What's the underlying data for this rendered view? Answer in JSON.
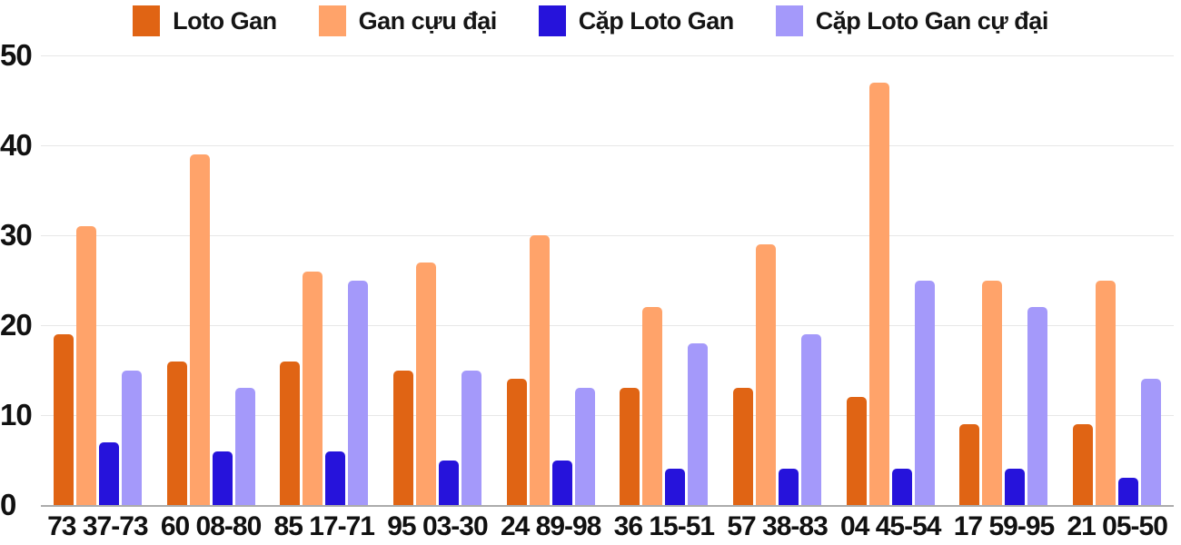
{
  "chart_data": {
    "type": "bar",
    "title": "",
    "xlabel": "",
    "ylabel": "",
    "ylim": [
      0,
      50
    ],
    "yticks": [
      0,
      10,
      20,
      30,
      40,
      50
    ],
    "grid": true,
    "legend_position": "top",
    "categories": [
      "73 37-73",
      "60 08-80",
      "85 17-71",
      "95 03-30",
      "24 89-98",
      "36 15-51",
      "57 38-83",
      "04 45-54",
      "17 59-95",
      "21 05-50"
    ],
    "series": [
      {
        "name": "Loto Gan",
        "color": "#e06414",
        "values": [
          19,
          16,
          16,
          15,
          14,
          13,
          13,
          12,
          9,
          9
        ]
      },
      {
        "name": "Gan cựu đại",
        "color": "#ffa36a",
        "values": [
          31,
          39,
          26,
          27,
          30,
          22,
          29,
          47,
          25,
          25
        ]
      },
      {
        "name": "Cặp Loto Gan",
        "color": "#2613db",
        "values": [
          7,
          6,
          6,
          5,
          5,
          4,
          4,
          4,
          4,
          3
        ]
      },
      {
        "name": "Cặp Loto Gan cự đại",
        "color": "#a499fa",
        "values": [
          15,
          13,
          25,
          15,
          13,
          18,
          19,
          25,
          22,
          14
        ]
      }
    ]
  },
  "colors": {
    "background": "#ffffff",
    "grid_line": "#e7e7e7",
    "axis_line": "#ababab",
    "text": "#111111"
  }
}
